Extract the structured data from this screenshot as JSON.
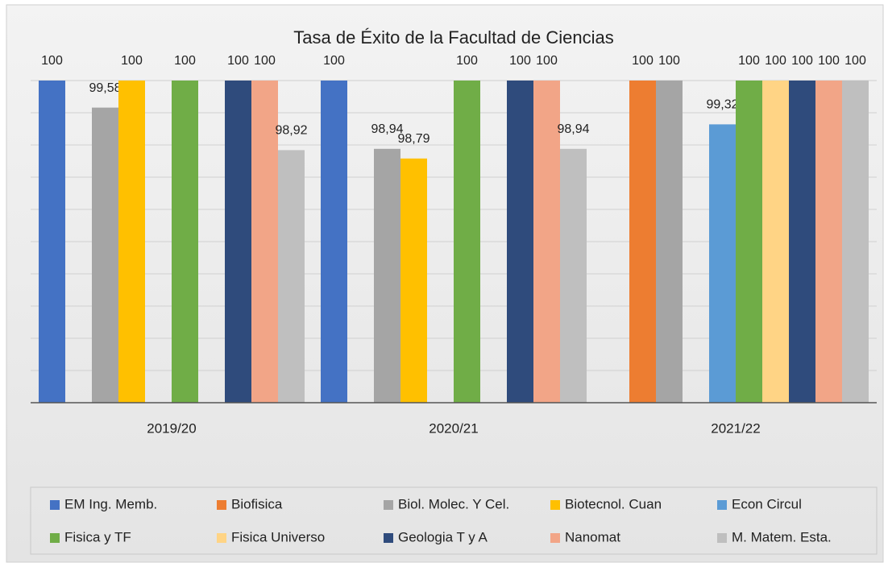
{
  "chart_data": {
    "type": "bar",
    "title": "Tasa de Éxito de la Facultad de Ciencias",
    "categories": [
      "2019/20",
      "2020/21",
      "2021/22"
    ],
    "ylim": [
      95,
      100
    ],
    "yticks": [
      95,
      95.5,
      96,
      96.5,
      97,
      97.5,
      98,
      98.5,
      99,
      99.5,
      100
    ],
    "grid": true,
    "legend": "bottom",
    "series": [
      {
        "name": "EM Ing. Memb.",
        "color": "#4472c4",
        "values": [
          100,
          100,
          null
        ],
        "value_labels": [
          "100",
          "100",
          null
        ]
      },
      {
        "name": "Biofisica",
        "color": "#ed7d31",
        "values": [
          null,
          null,
          100
        ],
        "value_labels": [
          null,
          null,
          "100"
        ]
      },
      {
        "name": "Biol. Molec. Y Cel.",
        "color": "#a5a5a5",
        "values": [
          99.58,
          98.94,
          100
        ],
        "value_labels": [
          "99,58",
          "98,94",
          "100"
        ]
      },
      {
        "name": "Biotecnol. Cuan",
        "color": "#ffc000",
        "values": [
          100,
          98.79,
          null
        ],
        "value_labels": [
          "100",
          "98,79",
          null
        ]
      },
      {
        "name": "Econ Circul",
        "color": "#5b9bd5",
        "values": [
          null,
          null,
          99.32
        ],
        "value_labels": [
          null,
          null,
          "99,32"
        ]
      },
      {
        "name": "Fisica y TF",
        "color": "#70ad47",
        "values": [
          100,
          100,
          100
        ],
        "value_labels": [
          "100",
          "100",
          "100"
        ]
      },
      {
        "name": "Fisica Universo",
        "color": "#ffd485",
        "values": [
          null,
          null,
          100
        ],
        "value_labels": [
          null,
          null,
          "100"
        ]
      },
      {
        "name": "Geologia T y A",
        "color": "#2f4b7c",
        "values": [
          100,
          100,
          100
        ],
        "value_labels": [
          "100",
          "100",
          "100"
        ]
      },
      {
        "name": "Nanomat",
        "color": "#f2a587",
        "values": [
          100,
          100,
          100
        ],
        "value_labels": [
          "100",
          "100",
          "100"
        ]
      },
      {
        "name": "M. Matem. Esta.",
        "color": "#bfbfbf",
        "values": [
          98.92,
          98.94,
          100
        ],
        "value_labels": [
          "98,92",
          "98,94",
          "100"
        ]
      }
    ]
  }
}
